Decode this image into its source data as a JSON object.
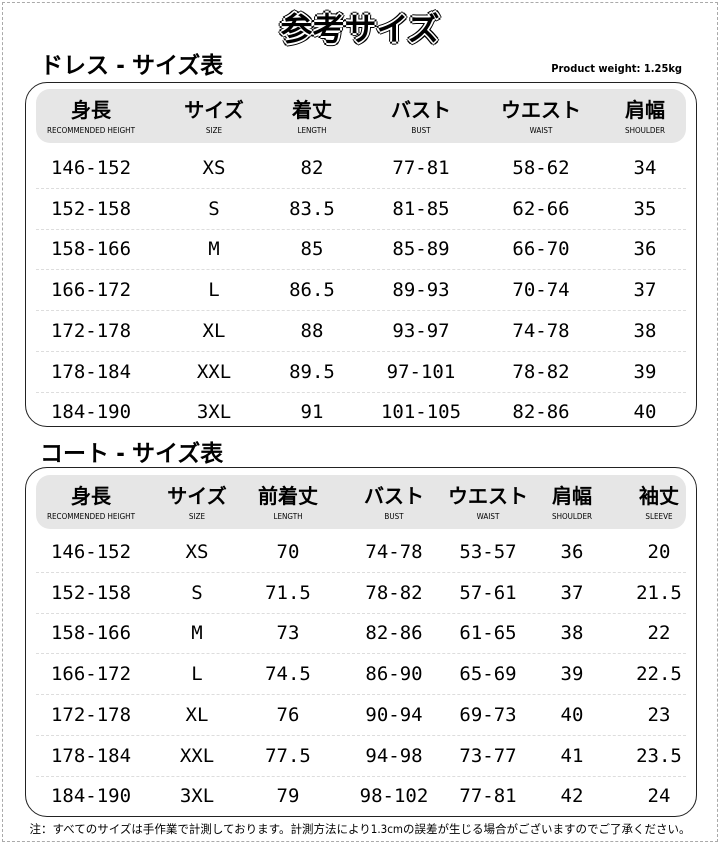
{
  "title": "参考サイズ",
  "dress": {
    "section_title": "ドレス - サイズ表",
    "product_weight": "Product weight: 1.25kg",
    "headers": [
      {
        "ja": "身長",
        "en": "RECOMMENDED HEIGHT"
      },
      {
        "ja": "サイズ",
        "en": "SIZE"
      },
      {
        "ja": "着丈",
        "en": "LENGTH"
      },
      {
        "ja": "バスト",
        "en": "BUST"
      },
      {
        "ja": "ウエスト",
        "en": "WAIST"
      },
      {
        "ja": "肩幅",
        "en": "SHOULDER"
      }
    ],
    "rows": [
      [
        "146-152",
        "XS",
        "82",
        "77-81",
        "58-62",
        "34"
      ],
      [
        "152-158",
        "S",
        "83.5",
        "81-85",
        "62-66",
        "35"
      ],
      [
        "158-166",
        "M",
        "85",
        "85-89",
        "66-70",
        "36"
      ],
      [
        "166-172",
        "L",
        "86.5",
        "89-93",
        "70-74",
        "37"
      ],
      [
        "172-178",
        "XL",
        "88",
        "93-97",
        "74-78",
        "38"
      ],
      [
        "178-184",
        "XXL",
        "89.5",
        "97-101",
        "78-82",
        "39"
      ],
      [
        "184-190",
        "3XL",
        "91",
        "101-105",
        "82-86",
        "40"
      ]
    ]
  },
  "coat": {
    "section_title": "コート - サイズ表",
    "headers": [
      {
        "ja": "身長",
        "en": "RECOMMENDED HEIGHT"
      },
      {
        "ja": "サイズ",
        "en": "SIZE"
      },
      {
        "ja": "前着丈",
        "en": "LENGTH"
      },
      {
        "ja": "バスト",
        "en": "BUST"
      },
      {
        "ja": "ウエスト",
        "en": "WAIST"
      },
      {
        "ja": "肩幅",
        "en": "SHOULDER"
      },
      {
        "ja": "袖丈",
        "en": "SLEEVE"
      }
    ],
    "rows": [
      [
        "146-152",
        "XS",
        "70",
        "74-78",
        "53-57",
        "36",
        "20"
      ],
      [
        "152-158",
        "S",
        "71.5",
        "78-82",
        "57-61",
        "37",
        "21.5"
      ],
      [
        "158-166",
        "M",
        "73",
        "82-86",
        "61-65",
        "38",
        "22"
      ],
      [
        "166-172",
        "L",
        "74.5",
        "86-90",
        "65-69",
        "39",
        "22.5"
      ],
      [
        "172-178",
        "XL",
        "76",
        "90-94",
        "69-73",
        "40",
        "23"
      ],
      [
        "178-184",
        "XXL",
        "77.5",
        "94-98",
        "73-77",
        "41",
        "23.5"
      ],
      [
        "184-190",
        "3XL",
        "79",
        "98-102",
        "77-81",
        "42",
        "24"
      ]
    ]
  },
  "note": "注：すべてのサイズは手作業で計測しております。計測方法により1.3cmの誤差が生じる場合がございますのでご了承ください。"
}
